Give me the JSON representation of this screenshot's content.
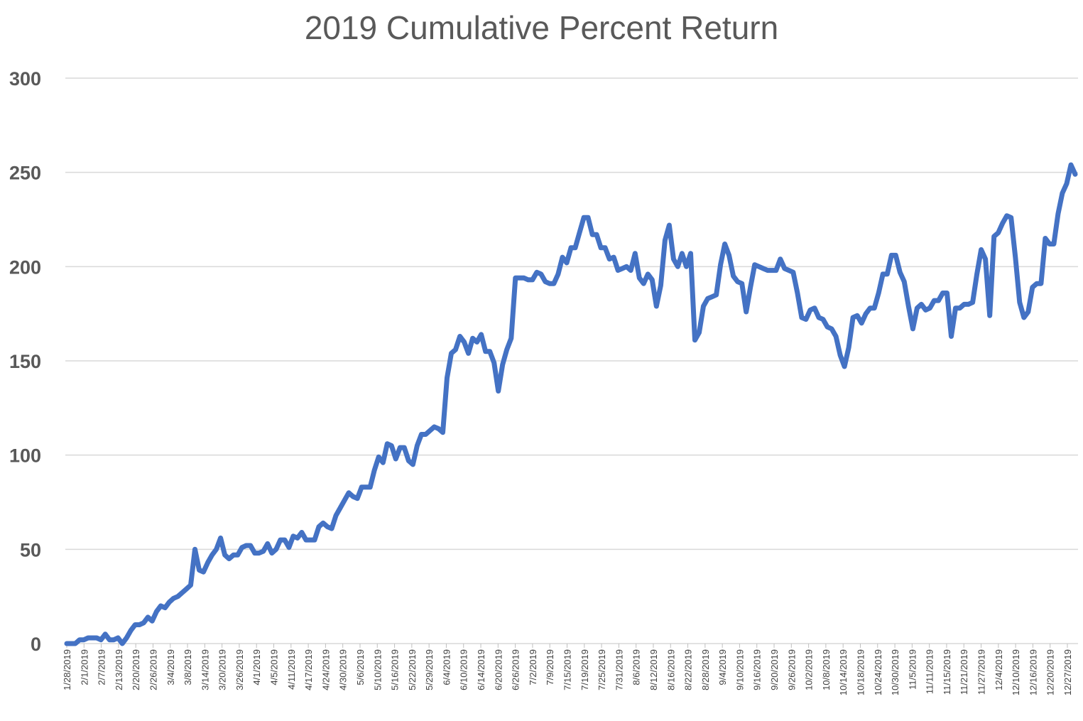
{
  "chart_data": {
    "type": "line",
    "title": "2019 Cumulative Percent Return",
    "xlabel": "",
    "ylabel": "",
    "ylim": [
      0,
      300
    ],
    "yticks": [
      0,
      50,
      100,
      150,
      200,
      250,
      300
    ],
    "grid": true,
    "legend": "none",
    "colors": {
      "line": "#4472C4",
      "grid": "#d9d9d9",
      "text": "#595959"
    },
    "x_tick_labels": [
      "1/28/2019",
      "2/1/2019",
      "2/7/2019",
      "2/13/2019",
      "2/20/2019",
      "2/26/2019",
      "3/4/2019",
      "3/8/2019",
      "3/14/2019",
      "3/20/2019",
      "3/26/2019",
      "4/1/2019",
      "4/5/2019",
      "4/11/2019",
      "4/17/2019",
      "4/24/2019",
      "4/30/2019",
      "5/6/2019",
      "5/10/2019",
      "5/16/2019",
      "5/22/2019",
      "5/29/2019",
      "6/4/2019",
      "6/10/2019",
      "6/14/2019",
      "6/20/2019",
      "6/26/2019",
      "7/2/2019",
      "7/9/2019",
      "7/15/2019",
      "7/19/2019",
      "7/25/2019",
      "7/31/2019",
      "8/6/2019",
      "8/12/2019",
      "8/16/2019",
      "8/22/2019",
      "8/28/2019",
      "9/4/2019",
      "9/10/2019",
      "9/16/2019",
      "9/20/2019",
      "9/26/2019",
      "10/2/2019",
      "10/8/2019",
      "10/14/2019",
      "10/18/2019",
      "10/24/2019",
      "10/30/2019",
      "11/5/2019",
      "11/11/2019",
      "11/15/2019",
      "11/21/2019",
      "11/27/2019",
      "12/4/2019",
      "12/10/2019",
      "12/16/2019",
      "12/20/2019",
      "12/27/2019"
    ],
    "values": [
      0,
      0,
      0,
      2,
      2,
      3,
      3,
      3,
      2,
      5,
      2,
      2,
      3,
      0,
      3,
      7,
      10,
      10,
      11,
      14,
      12,
      17,
      20,
      19,
      22,
      24,
      25,
      27,
      29,
      31,
      50,
      39,
      38,
      43,
      47,
      50,
      56,
      47,
      45,
      47,
      47,
      51,
      52,
      52,
      48,
      48,
      49,
      53,
      48,
      50,
      55,
      55,
      51,
      57,
      56,
      59,
      55,
      55,
      55,
      62,
      64,
      62,
      61,
      68,
      72,
      76,
      80,
      78,
      77,
      83,
      83,
      83,
      92,
      99,
      96,
      106,
      105,
      98,
      104,
      104,
      97,
      95,
      105,
      111,
      111,
      113,
      115,
      114,
      112,
      141,
      154,
      156,
      163,
      160,
      154,
      162,
      160,
      164,
      155,
      155,
      149,
      134,
      148,
      156,
      162,
      194,
      194,
      194,
      193,
      193,
      197,
      196,
      192,
      191,
      191,
      196,
      205,
      202,
      210,
      210,
      218,
      226,
      226,
      217,
      217,
      210,
      210,
      204,
      205,
      198,
      199,
      200,
      198,
      207,
      194,
      191,
      196,
      193,
      179,
      190,
      214,
      222,
      204,
      200,
      207,
      200,
      207,
      161,
      165,
      179,
      183,
      184,
      185,
      201,
      212,
      206,
      195,
      192,
      191,
      176,
      189,
      201,
      200,
      199,
      198,
      198,
      198,
      204,
      199,
      198,
      197,
      186,
      173,
      172,
      177,
      178,
      173,
      172,
      168,
      167,
      163,
      153,
      147,
      157,
      173,
      174,
      170,
      175,
      178,
      178,
      186,
      196,
      196,
      206,
      206,
      197,
      192,
      179,
      167,
      178,
      180,
      177,
      178,
      182,
      182,
      186,
      186,
      163,
      178,
      178,
      180,
      180,
      181,
      196,
      209,
      204,
      174,
      216,
      218,
      223,
      227,
      226,
      205,
      181,
      173,
      176,
      189,
      191,
      191,
      215,
      212,
      212,
      228,
      239,
      244,
      254,
      249
    ]
  }
}
